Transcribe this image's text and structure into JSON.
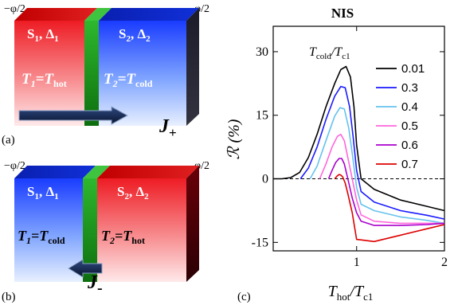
{
  "panel_a": {
    "label": "(a)",
    "phase_left": "−φ/2",
    "phase_right": "φ/2",
    "left_title": "S",
    "left_sub": "1",
    "left_delta": "Δ",
    "left_delta_sub": "1",
    "right_title": "S",
    "right_sub": "2",
    "right_delta": "Δ",
    "right_delta_sub": "2",
    "left_temp": "T",
    "left_temp_sub": "1",
    "left_temp_eq": "=T",
    "left_temp_val": "hot",
    "right_temp": "T",
    "right_temp_sub": "2",
    "right_temp_eq": "=T",
    "right_temp_val": "cold",
    "current": "J",
    "current_sign": "+"
  },
  "panel_b": {
    "label": "(b)",
    "phase_left": "−φ/2",
    "phase_right": "φ/2",
    "left_title": "S",
    "left_sub": "1",
    "left_delta": "Δ",
    "left_delta_sub": "1",
    "right_title": "S",
    "right_sub": "2",
    "right_delta": "Δ",
    "right_delta_sub": "2",
    "left_temp": "T",
    "left_temp_sub": "1",
    "left_temp_eq": "=T",
    "left_temp_val": "cold",
    "right_temp": "T",
    "right_temp_sub": "2",
    "right_temp_eq": "=T",
    "right_temp_val": "hot",
    "current": "J",
    "current_sign": "-"
  },
  "panel_c_label": "(c)",
  "chart_data": {
    "type": "line",
    "title": "NIS",
    "ylabel": "ℛ (%)",
    "xlabel_main": "T",
    "xlabel_sub1": "hot",
    "xlabel_sep": "/T",
    "xlabel_sub2": "c1",
    "legend_title_main": "T",
    "legend_title_sub1": "cold",
    "legend_title_sep": "/T",
    "legend_title_sub2": "c1",
    "xlim": [
      0.05,
      2.0
    ],
    "ylim": [
      -17,
      36
    ],
    "xticks": [
      "1",
      "2"
    ],
    "yticks": [
      "30",
      "15",
      "0",
      "-15"
    ],
    "ytick_values": [
      30,
      15,
      0,
      -15
    ],
    "xtick_values": [
      1,
      2
    ],
    "zero_line": "dashed",
    "legend_placement": "top-right",
    "series": [
      {
        "name": "0.01",
        "color": "#000000",
        "x": [
          0.05,
          0.15,
          0.25,
          0.35,
          0.45,
          0.55,
          0.65,
          0.75,
          0.82,
          0.88,
          0.93,
          0.97,
          1.0,
          1.05,
          1.2,
          1.5,
          1.8,
          2.0
        ],
        "y": [
          0,
          0,
          0.3,
          1.5,
          5,
          10.5,
          17,
          22.5,
          25.8,
          26.5,
          24,
          17,
          8,
          0,
          -2.5,
          -5,
          -6.5,
          -7.5
        ]
      },
      {
        "name": "0.3",
        "color": "#1a1aff",
        "x": [
          0.36,
          0.45,
          0.55,
          0.65,
          0.75,
          0.82,
          0.87,
          0.92,
          0.96,
          1.0,
          1.05,
          1.2,
          1.5,
          1.8,
          2.0
        ],
        "y": [
          0,
          2.5,
          7.5,
          14,
          19.5,
          21.8,
          21.5,
          17,
          10,
          2,
          -3,
          -5.5,
          -7.5,
          -8.6,
          -9.5
        ]
      },
      {
        "name": "0.4",
        "color": "#66c2ee",
        "x": [
          0.47,
          0.55,
          0.65,
          0.75,
          0.81,
          0.86,
          0.91,
          0.95,
          1.0,
          1.05,
          1.2,
          1.5,
          1.8,
          2.0
        ],
        "y": [
          0,
          3,
          9,
          14.8,
          16.8,
          16.5,
          12,
          6,
          -2,
          -6,
          -7.5,
          -9,
          -9.8,
          -10.5
        ]
      },
      {
        "name": "0.5",
        "color": "#ff66dd",
        "x": [
          0.58,
          0.65,
          0.72,
          0.78,
          0.82,
          0.86,
          0.9,
          0.95,
          1.0,
          1.05,
          1.2,
          1.5,
          1.8,
          2.0
        ],
        "y": [
          0,
          3.5,
          7.5,
          10,
          10.5,
          9,
          5,
          0,
          -5,
          -8.5,
          -10,
          -10.5,
          -10.5,
          -10.5
        ]
      },
      {
        "name": "0.6",
        "color": "#aa00cc",
        "x": [
          0.68,
          0.72,
          0.76,
          0.8,
          0.83,
          0.86,
          0.9,
          0.95,
          1.0,
          1.05,
          1.2,
          1.5,
          1.8,
          2.0
        ],
        "y": [
          0,
          2,
          3.8,
          4.8,
          4.8,
          3.5,
          0,
          -4.5,
          -8,
          -10,
          -11,
          -11,
          -10.8,
          -10.5
        ]
      },
      {
        "name": "0.7",
        "color": "#dd0000",
        "x": [
          0.75,
          0.78,
          0.8,
          0.82,
          0.84,
          0.87,
          0.9,
          0.95,
          1.0,
          1.2,
          1.5,
          1.8,
          2.0
        ],
        "y": [
          0,
          0.7,
          1,
          0.9,
          0.5,
          -1,
          -3.5,
          -8,
          -14.3,
          -14.8,
          -13.3,
          -11.8,
          -10.8
        ]
      }
    ]
  }
}
